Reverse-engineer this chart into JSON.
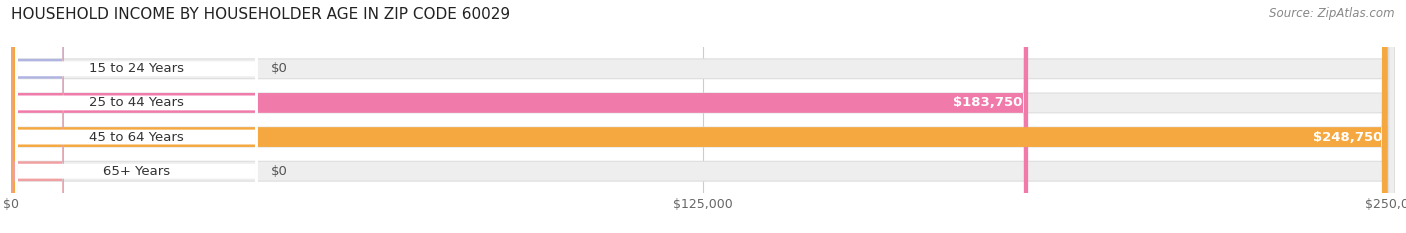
{
  "title": "HOUSEHOLD INCOME BY HOUSEHOLDER AGE IN ZIP CODE 60029",
  "source": "Source: ZipAtlas.com",
  "categories": [
    "15 to 24 Years",
    "25 to 44 Years",
    "45 to 64 Years",
    "65+ Years"
  ],
  "values": [
    0,
    183750,
    248750,
    0
  ],
  "bar_colors": [
    "#b0b4e0",
    "#f07aaa",
    "#f5a840",
    "#f0a0a0"
  ],
  "value_labels": [
    "$0",
    "$183,750",
    "$248,750",
    "$0"
  ],
  "xlim_max": 250000,
  "xticks": [
    0,
    125000,
    250000
  ],
  "xtick_labels": [
    "$0",
    "$125,000",
    "$250,000"
  ],
  "title_fontsize": 11,
  "source_fontsize": 8.5,
  "cat_fontsize": 9.5,
  "val_fontsize": 9.5,
  "tick_fontsize": 9,
  "bar_height": 0.58,
  "bar_bg_color": "#eeeeee",
  "label_bg_color": "#ffffff",
  "background_color": "#ffffff",
  "grid_color": "#cccccc"
}
